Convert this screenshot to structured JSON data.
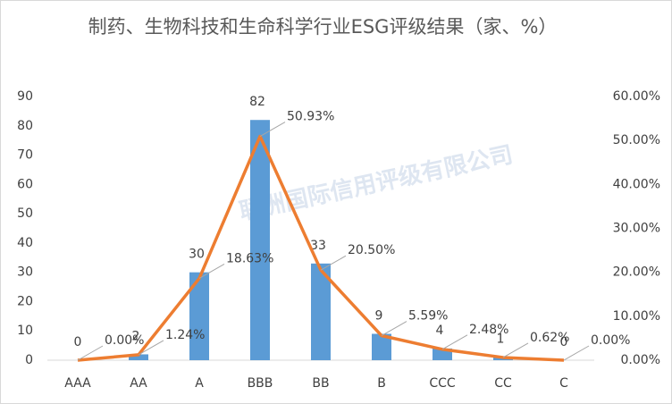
{
  "chart_data": {
    "type": "bar-line",
    "title": "制药、生物科技和生命科学行业ESG评级结果（家、%）",
    "watermark": "联洲国际信用评级有限公司",
    "categories": [
      "AAA",
      "AA",
      "A",
      "BBB",
      "BB",
      "B",
      "CCC",
      "CC",
      "C"
    ],
    "series": [
      {
        "name": "家",
        "kind": "bar",
        "color": "#5b9bd5",
        "values": [
          0,
          2,
          30,
          82,
          33,
          9,
          4,
          1,
          0
        ]
      },
      {
        "name": "%",
        "kind": "line",
        "axis": "y2",
        "color": "#ed7d31",
        "values": [
          0,
          1.24,
          18.63,
          50.93,
          20.5,
          5.59,
          2.48,
          0.62,
          0
        ],
        "value_labels": [
          "0.00%",
          "1.24%",
          "18.63%",
          "50.93%",
          "20.50%",
          "5.59%",
          "2.48%",
          "0.62%",
          "0.00%"
        ]
      }
    ],
    "ylim": [
      0,
      90
    ],
    "yticks": [
      0,
      10,
      20,
      30,
      40,
      50,
      60,
      70,
      80,
      90
    ],
    "y2lim": [
      0,
      60
    ],
    "y2ticks": [
      {
        "value": 0,
        "label": "0.00%"
      },
      {
        "value": 10,
        "label": "10.00%"
      },
      {
        "value": 20,
        "label": "20.00%"
      },
      {
        "value": 30,
        "label": "30.00%"
      },
      {
        "value": 40,
        "label": "40.00%"
      },
      {
        "value": 50,
        "label": "50.00%"
      },
      {
        "value": 60,
        "label": "60.00%"
      }
    ],
    "grid": false
  }
}
